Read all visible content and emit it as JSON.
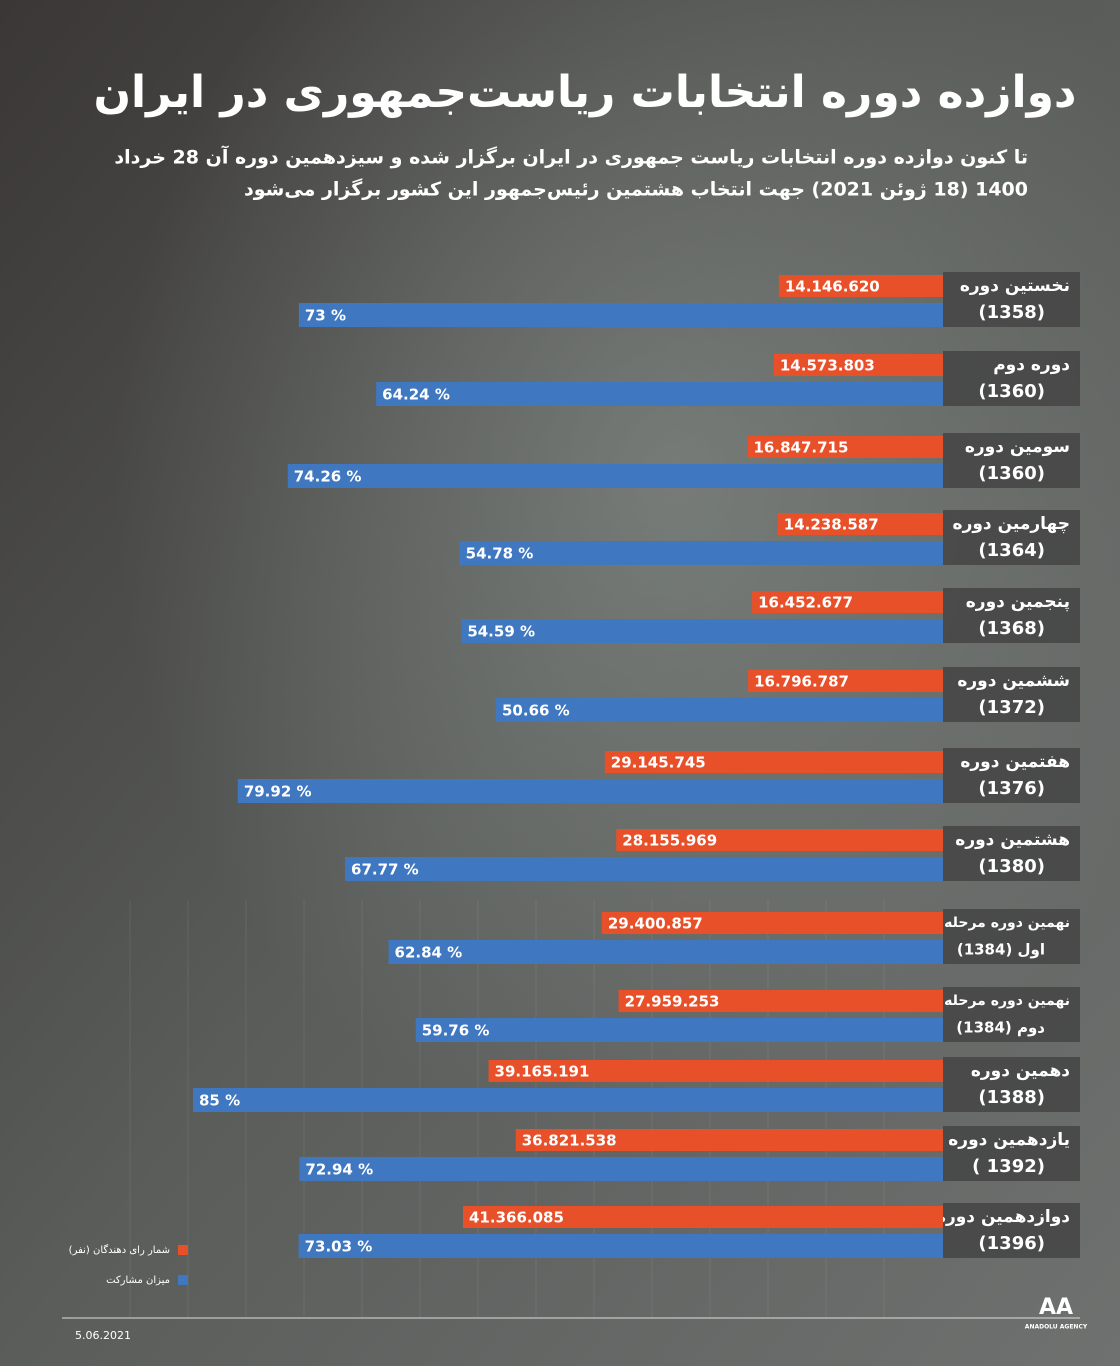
{
  "chart_data": {
    "type": "bar",
    "title": "دوازده دوره انتخابات ریاست‌جمهوری در ایران",
    "subtitle": [
      "تا کنون دوازده دوره انتخابات ریاست جمهوری در ایران برگزار شده و سیزدهمین دوره آن 28 خرداد",
      "1400 (18 ژوئن 2021) جهت انتخاب هشتمین رئیس‌جمهور این کشور برگزار می‌شود"
    ],
    "categories": [
      "نخستین دوره",
      "دوره دوم",
      "سومین دوره",
      "چهارمین دوره",
      "پنجمین دوره",
      "ششمین دوره",
      "هفتمین دوره",
      "هشتمین دوره",
      "نهمین دوره  مرحله",
      "نهمین دوره  مرحله",
      "دهمین دوره",
      "یازدهمین دوره",
      "دوازدهمین دوره"
    ],
    "category_years": [
      "(1358)",
      "(1360)",
      "(1360)",
      "(1364)",
      "(1368)",
      "(1372)",
      "(1376)",
      "(1380)",
      "اول (1384)",
      "دوم (1384)",
      "(1388)",
      "(1392 )",
      "(1396)"
    ],
    "series": [
      {
        "name": "شمار رای دهندگان (نفر)",
        "color": "#e8502a",
        "values": [
          14146620,
          14573803,
          16847715,
          14238587,
          16452677,
          16796787,
          29145745,
          28155969,
          29400857,
          27959253,
          39165191,
          36821538,
          41366085
        ],
        "value_labels": [
          "14.146.620",
          "14.573.803",
          "16.847.715",
          "14.238.587",
          "16.452.677",
          "16.796.787",
          "29.145.745",
          "28.155.969",
          "29.400.857",
          "27.959.253",
          "39.165.191",
          "36.821.538",
          "41.366.085"
        ]
      },
      {
        "name": "میزان مشارکت",
        "color": "#3f78c0",
        "values": [
          73,
          64.24,
          74.26,
          54.78,
          54.59,
          50.66,
          79.92,
          67.77,
          62.84,
          59.76,
          85,
          72.94,
          73.03
        ],
        "value_labels": [
          "73 %",
          "64.24 %",
          "74.26 %",
          "54.78  %",
          "54.59 %",
          "50.66 %",
          "79.92 %",
          "67.77  %",
          "62.84 %",
          "59.76 %",
          "85 %",
          "72.94 %",
          "73.03 %"
        ]
      }
    ],
    "date": "5.06.2021",
    "source": "ANADOLU AGENCY",
    "source_logo": "AA"
  }
}
